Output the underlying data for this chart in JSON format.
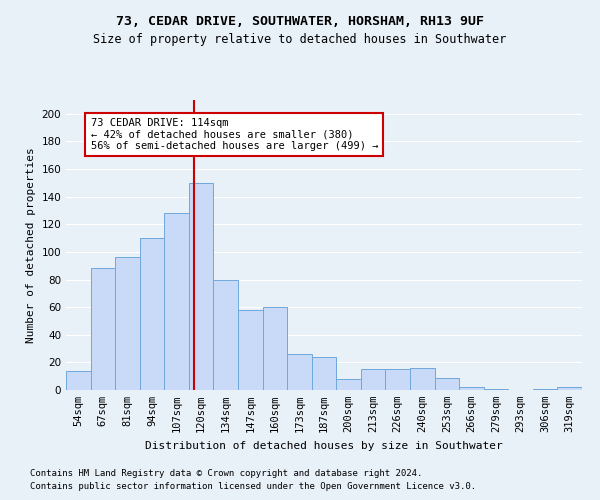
{
  "title": "73, CEDAR DRIVE, SOUTHWATER, HORSHAM, RH13 9UF",
  "subtitle": "Size of property relative to detached houses in Southwater",
  "xlabel": "Distribution of detached houses by size in Southwater",
  "ylabel": "Number of detached properties",
  "categories": [
    "54sqm",
    "67sqm",
    "81sqm",
    "94sqm",
    "107sqm",
    "120sqm",
    "134sqm",
    "147sqm",
    "160sqm",
    "173sqm",
    "187sqm",
    "200sqm",
    "213sqm",
    "226sqm",
    "240sqm",
    "253sqm",
    "266sqm",
    "279sqm",
    "293sqm",
    "306sqm",
    "319sqm"
  ],
  "values": [
    14,
    88,
    96,
    110,
    128,
    150,
    80,
    58,
    60,
    26,
    24,
    8,
    15,
    15,
    16,
    9,
    2,
    1,
    0,
    1,
    2
  ],
  "bar_color": "#c9daf8",
  "bar_edge_color": "#6fa8dc",
  "red_line_x": 4.72,
  "annotation_text": "73 CEDAR DRIVE: 114sqm\n← 42% of detached houses are smaller (380)\n56% of semi-detached houses are larger (499) →",
  "annotation_box_color": "#ffffff",
  "annotation_box_edge": "#cc0000",
  "footnote1": "Contains HM Land Registry data © Crown copyright and database right 2024.",
  "footnote2": "Contains public sector information licensed under the Open Government Licence v3.0.",
  "ylim": [
    0,
    210
  ],
  "yticks": [
    0,
    20,
    40,
    60,
    80,
    100,
    120,
    140,
    160,
    180,
    200
  ],
  "bg_color": "#e8f0f8",
  "axes_bg_color": "#e8f0f8",
  "grid_color": "#ffffff",
  "title_fontsize": 9.5,
  "subtitle_fontsize": 8.5,
  "tick_fontsize": 7.5,
  "label_fontsize": 8,
  "annot_fontsize": 7.5,
  "footnote_fontsize": 6.5
}
